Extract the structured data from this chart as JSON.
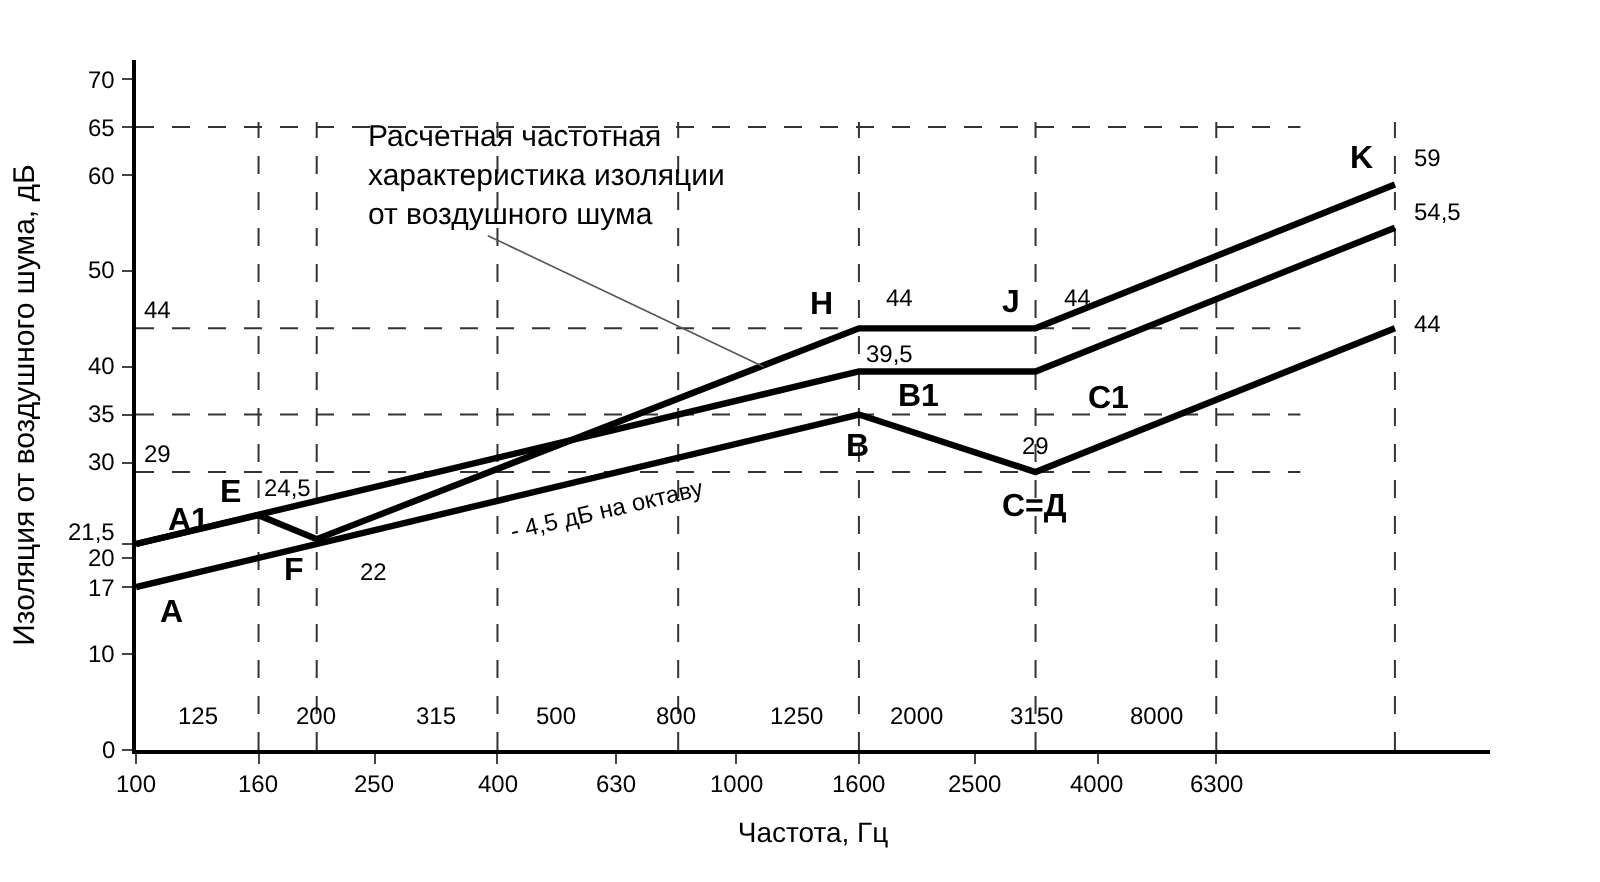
{
  "chart_data": {
    "type": "line",
    "xlabel": "Частота, Гц",
    "ylabel": "Изоляция от воздушного шума, дБ",
    "log": "x",
    "grid": false,
    "marker": "none",
    "line_style": "solid",
    "xlim": [
      100,
      18000
    ],
    "xticks": [
      100,
      160,
      250,
      400,
      630,
      1000,
      1600,
      2500,
      4000,
      6300
    ],
    "ylim": [
      0,
      72
    ],
    "yticks": [
      0,
      10,
      17,
      20,
      {
        "value": 21.5,
        "label": "21,5"
      },
      30,
      35,
      40,
      50,
      60,
      65,
      70
    ],
    "series": [
      {
        "color": "#000000",
        "x": [
          100,
          1600,
          3150,
          12500
        ],
        "values": [
          17,
          35,
          29,
          44
        ]
      },
      {
        "color": "#000000",
        "x": [
          100,
          1600,
          3150,
          12500
        ],
        "values": [
          21.5,
          39.5,
          39.5,
          54.5
        ]
      },
      {
        "color": "#000000",
        "x": [
          100,
          160,
          200,
          1600,
          3150,
          12500
        ],
        "values": [
          21.5,
          24.5,
          22,
          44,
          44,
          59
        ]
      }
    ],
    "ref_lines": [
      {
        "axis": "y",
        "value": 65,
        "color": "#333333",
        "line_style": "dashed"
      },
      {
        "axis": "y",
        "value": 44,
        "label": "44",
        "color": "#333333",
        "line_style": "dashed"
      },
      {
        "axis": "y",
        "value": 35,
        "color": "#333333",
        "line_style": "dashed"
      },
      {
        "axis": "y",
        "value": 29,
        "label": "29",
        "color": "#333333",
        "line_style": "dashed"
      },
      {
        "axis": "x",
        "value": 160,
        "color": "#333333",
        "line_style": "dashed"
      },
      {
        "axis": "x",
        "value": 200,
        "color": "#333333",
        "line_style": "dashed"
      },
      {
        "axis": "x",
        "value": 400,
        "color": "#333333",
        "line_style": "dashed"
      },
      {
        "axis": "x",
        "value": 800,
        "color": "#333333",
        "line_style": "dashed"
      },
      {
        "axis": "x",
        "value": 1600,
        "color": "#333333",
        "line_style": "dashed"
      },
      {
        "axis": "x",
        "value": 3150,
        "color": "#333333",
        "line_style": "dashed"
      },
      {
        "axis": "x",
        "value": 6300,
        "color": "#333333",
        "line_style": "dashed"
      },
      {
        "axis": "x",
        "value": 12500,
        "color": "#333333",
        "line_style": "dashed"
      }
    ],
    "annotations": [
      {
        "text": "Расчетная частотная\nхарактеристика изоляции\nот воздушного шума",
        "x": 1110,
        "y": 40
      },
      "- 4,5 дБ на октаву",
      {
        "text": "A",
        "x": 100,
        "y": 17
      },
      {
        "text": "A1",
        "x": 100,
        "y": 21.5
      },
      {
        "text": "E",
        "x": 160,
        "y": 24.5
      },
      {
        "text": "24,5",
        "x": 160,
        "y": 24.5
      },
      {
        "text": "F",
        "x": 200,
        "y": 22
      },
      {
        "text": "22",
        "x": 200,
        "y": 22
      },
      {
        "text": "H",
        "x": 1600,
        "y": 44
      },
      {
        "text": "44",
        "x": 1600,
        "y": 44
      },
      {
        "text": "B1",
        "x": 1600,
        "y": 39.5
      },
      {
        "text": "39,5",
        "x": 1600,
        "y": 39.5
      },
      {
        "text": "B",
        "x": 1600,
        "y": 35
      },
      {
        "text": "J",
        "x": 3150,
        "y": 44
      },
      {
        "text": "44",
        "x": 3150,
        "y": 44
      },
      {
        "text": "C1",
        "x": 3150,
        "y": 39.5
      },
      {
        "text": "C=Д",
        "x": 3150,
        "y": 29
      },
      {
        "text": "29",
        "x": 3150,
        "y": 29
      },
      {
        "text": "K",
        "x": 12500,
        "y": 59
      },
      {
        "text": "59",
        "x": 12500,
        "y": 59
      },
      {
        "text": "54,5",
        "x": 12500,
        "y": 54.5
      },
      {
        "text": "44",
        "x": 12500,
        "y": 44
      },
      "125",
      "200",
      "315",
      "500",
      "800",
      "1250",
      "2000",
      "3150",
      "8000"
    ]
  }
}
